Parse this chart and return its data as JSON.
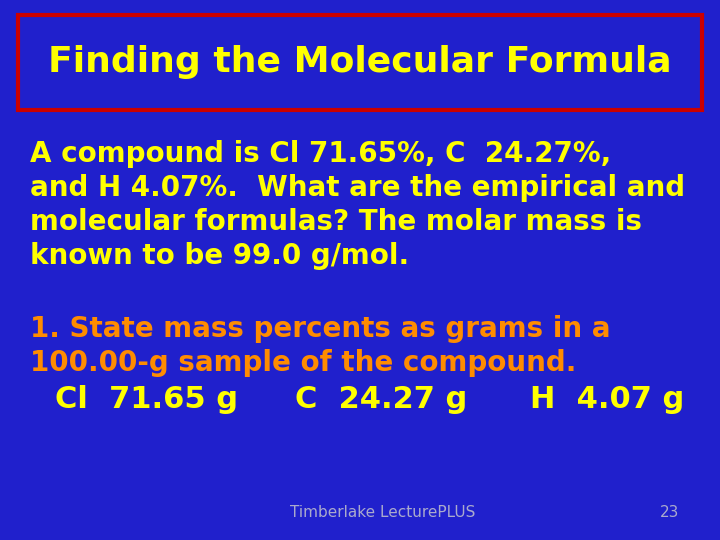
{
  "background_color": "#2020CC",
  "title": "Finding the Molecular Formula",
  "title_color": "#FFFF00",
  "title_fontsize": 26,
  "title_box_edge_color": "#CC0000",
  "body_text_1_line1": "A compound is Cl 71.65%, C  24.27%,",
  "body_text_1_line2": "and H 4.07%.  What are the empirical and",
  "body_text_1_line3": "molecular formulas? The molar mass is",
  "body_text_1_line4": "known to be 99.0 g/mol.",
  "body_text_1_color": "#FFFF00",
  "body_text_1_fontsize": 20,
  "body_text_2_line1": "1. State mass percents as grams in a",
  "body_text_2_line2": "100.00-g sample of the compound.",
  "body_text_2_color": "#FF8C00",
  "body_text_2_fontsize": 20,
  "cl_text": "Cl  71.65 g",
  "c_text": "C  24.27 g",
  "h_text": "H  4.07 g",
  "body_text_3_color": "#FFFF00",
  "body_text_3_fontsize": 22,
  "footer_text": "Timberlake LecturePLUS",
  "footer_number": "23",
  "footer_color": "#AAAACC",
  "footer_fontsize": 11
}
